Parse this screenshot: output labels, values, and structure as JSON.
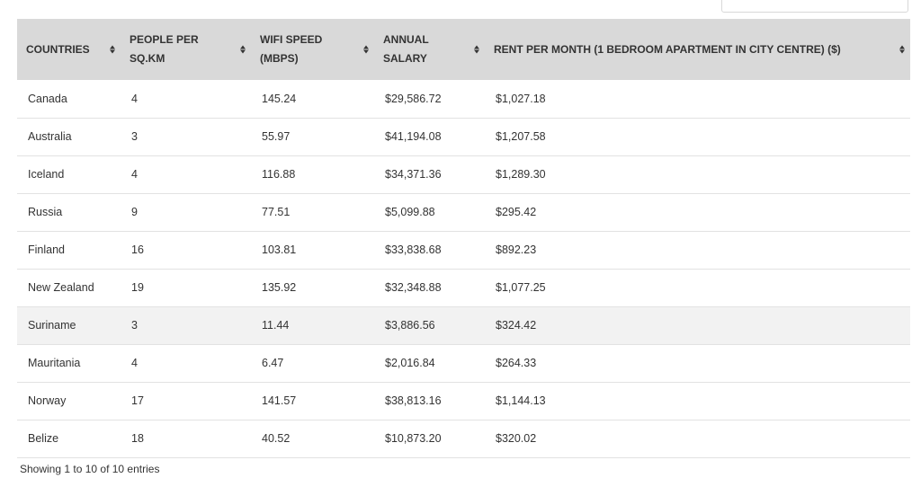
{
  "table": {
    "columns": [
      "COUNTRIES",
      "PEOPLE PER SQ.KM",
      "WIFI SPEED (MBPS)",
      "ANNUAL SALARY",
      "RENT PER MONTH (1 BEDROOM APARTMENT IN CITY CENTRE) ($)"
    ],
    "rows": [
      [
        "Canada",
        "4",
        "145.24",
        "$29,586.72",
        "$1,027.18"
      ],
      [
        "Australia",
        "3",
        "55.97",
        "$41,194.08",
        "$1,207.58"
      ],
      [
        "Iceland",
        "4",
        "116.88",
        "$34,371.36",
        "$1,289.30"
      ],
      [
        "Russia",
        "9",
        "77.51",
        "$5,099.88",
        "$295.42"
      ],
      [
        "Finland",
        "16",
        "103.81",
        "$33,838.68",
        "$892.23"
      ],
      [
        "New Zealand",
        "19",
        "135.92",
        "$32,348.88",
        "$1,077.25"
      ],
      [
        "Suriname",
        "3",
        "11.44",
        "$3,886.56",
        "$324.42"
      ],
      [
        "Mauritania",
        "4",
        "6.47",
        "$2,016.84",
        "$264.33"
      ],
      [
        "Norway",
        "17",
        "141.57",
        "$38,813.16",
        "$1,144.13"
      ],
      [
        "Belize",
        "18",
        "40.52",
        "$10,873.20",
        "$320.02"
      ]
    ],
    "shaded_rows": [
      6
    ]
  },
  "info": "Showing 1 to 10 of 10 entries",
  "colors": {
    "header_bg": "#d9d9d9",
    "row_border": "#e2e2e2",
    "shaded_row_bg": "#f2f2f2"
  }
}
